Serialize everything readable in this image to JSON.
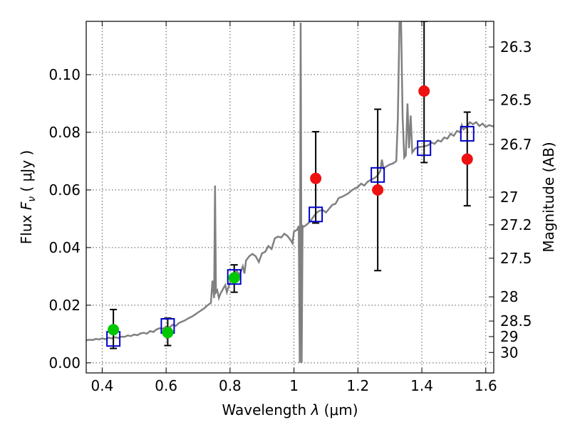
{
  "chart_data": {
    "type": "scatter",
    "xlabel_text": "Wavelength  ",
    "xlabel_symbol": "λ",
    "xlabel_unit": " (μm)",
    "ylabel_text": "Flux  ",
    "ylabel_symbol": "F",
    "ylabel_sub": "ν",
    "ylabel_unit": "  ( μJy )",
    "y2label": "Magnitude (AB)",
    "xlim": [
      0.35,
      1.625
    ],
    "ylim": [
      -0.0035,
      0.1185
    ],
    "grid": true,
    "x_ticks": [
      0.4,
      0.6,
      0.8,
      1.0,
      1.2,
      1.4,
      1.6
    ],
    "x_tick_labels": [
      "0.4",
      "0.6",
      "0.8",
      "1",
      "1.2",
      "1.4",
      "1.6"
    ],
    "y_ticks": [
      0.0,
      0.02,
      0.04,
      0.06,
      0.08,
      0.1
    ],
    "y_tick_labels": [
      "0.00",
      "0.02",
      "0.04",
      "0.06",
      "0.08",
      "0.10"
    ],
    "y2_ticks": [
      {
        "label": "26.3",
        "flux": 0.1096
      },
      {
        "label": "26.5",
        "flux": 0.0912
      },
      {
        "label": "26.7",
        "flux": 0.0758
      },
      {
        "label": "27",
        "flux": 0.0575
      },
      {
        "label": "27.2",
        "flux": 0.0479
      },
      {
        "label": "27.5",
        "flux": 0.0363
      },
      {
        "label": "28",
        "flux": 0.0229
      },
      {
        "label": "28.5",
        "flux": 0.0145
      },
      {
        "label": "29",
        "flux": 0.0091
      },
      {
        "label": "30",
        "flux": 0.0036
      }
    ],
    "colors": {
      "spectrum": "#808080",
      "model_squares": "#0000cc",
      "green_points": "#00c800",
      "red_points": "#ee1111",
      "error_bars": "#000000",
      "grid": "#555555"
    },
    "spectrum": [
      [
        0.35,
        0.0078
      ],
      [
        0.36,
        0.008
      ],
      [
        0.37,
        0.0079
      ],
      [
        0.38,
        0.0083
      ],
      [
        0.39,
        0.0081
      ],
      [
        0.4,
        0.0085
      ],
      [
        0.41,
        0.0082
      ],
      [
        0.42,
        0.0087
      ],
      [
        0.43,
        0.0085
      ],
      [
        0.44,
        0.0089
      ],
      [
        0.45,
        0.0086
      ],
      [
        0.46,
        0.0091
      ],
      [
        0.47,
        0.009
      ],
      [
        0.48,
        0.0095
      ],
      [
        0.49,
        0.0093
      ],
      [
        0.5,
        0.0098
      ],
      [
        0.51,
        0.0096
      ],
      [
        0.52,
        0.0102
      ],
      [
        0.53,
        0.0104
      ],
      [
        0.54,
        0.0101
      ],
      [
        0.55,
        0.011
      ],
      [
        0.56,
        0.0107
      ],
      [
        0.57,
        0.0116
      ],
      [
        0.58,
        0.012
      ],
      [
        0.59,
        0.0118
      ],
      [
        0.6,
        0.0126
      ],
      [
        0.61,
        0.0122
      ],
      [
        0.62,
        0.0132
      ],
      [
        0.63,
        0.0128
      ],
      [
        0.64,
        0.0138
      ],
      [
        0.65,
        0.0143
      ],
      [
        0.66,
        0.0148
      ],
      [
        0.67,
        0.0155
      ],
      [
        0.68,
        0.016
      ],
      [
        0.69,
        0.0167
      ],
      [
        0.7,
        0.0175
      ],
      [
        0.71,
        0.0182
      ],
      [
        0.72,
        0.019
      ],
      [
        0.73,
        0.02
      ],
      [
        0.74,
        0.0208
      ],
      [
        0.745,
        0.0285
      ],
      [
        0.75,
        0.0225
      ],
      [
        0.753,
        0.0615
      ],
      [
        0.756,
        0.0245
      ],
      [
        0.76,
        0.0252
      ],
      [
        0.765,
        0.0225
      ],
      [
        0.77,
        0.024
      ],
      [
        0.78,
        0.026
      ],
      [
        0.785,
        0.027
      ],
      [
        0.79,
        0.0245
      ],
      [
        0.8,
        0.028
      ],
      [
        0.81,
        0.03
      ],
      [
        0.82,
        0.032
      ],
      [
        0.83,
        0.0305
      ],
      [
        0.84,
        0.0335
      ],
      [
        0.845,
        0.031
      ],
      [
        0.85,
        0.0355
      ],
      [
        0.86,
        0.037
      ],
      [
        0.87,
        0.0378
      ],
      [
        0.88,
        0.037
      ],
      [
        0.89,
        0.035
      ],
      [
        0.9,
        0.038
      ],
      [
        0.91,
        0.0385
      ],
      [
        0.92,
        0.0405
      ],
      [
        0.93,
        0.0395
      ],
      [
        0.94,
        0.0432
      ],
      [
        0.95,
        0.0438
      ],
      [
        0.96,
        0.0435
      ],
      [
        0.97,
        0.0448
      ],
      [
        0.98,
        0.044
      ],
      [
        0.99,
        0.0425
      ],
      [
        0.995,
        0.0415
      ],
      [
        1.0,
        0.0455
      ],
      [
        1.01,
        0.0462
      ],
      [
        1.015,
        0.0475
      ],
      [
        1.018,
        0.0
      ],
      [
        1.021,
        0.118
      ],
      [
        1.024,
        0.0
      ],
      [
        1.027,
        0.0475
      ],
      [
        1.03,
        0.0472
      ],
      [
        1.04,
        0.048
      ],
      [
        1.05,
        0.049
      ],
      [
        1.06,
        0.0505
      ],
      [
        1.07,
        0.052
      ],
      [
        1.08,
        0.0528
      ],
      [
        1.09,
        0.053
      ],
      [
        1.1,
        0.0522
      ],
      [
        1.11,
        0.0535
      ],
      [
        1.12,
        0.0548
      ],
      [
        1.13,
        0.0552
      ],
      [
        1.14,
        0.0572
      ],
      [
        1.15,
        0.0576
      ],
      [
        1.16,
        0.0582
      ],
      [
        1.17,
        0.0588
      ],
      [
        1.18,
        0.0598
      ],
      [
        1.19,
        0.0605
      ],
      [
        1.2,
        0.061
      ],
      [
        1.21,
        0.0622
      ],
      [
        1.22,
        0.0615
      ],
      [
        1.23,
        0.0628
      ],
      [
        1.24,
        0.0635
      ],
      [
        1.25,
        0.064
      ],
      [
        1.26,
        0.0648
      ],
      [
        1.27,
        0.0665
      ],
      [
        1.275,
        0.0705
      ],
      [
        1.28,
        0.0675
      ],
      [
        1.29,
        0.0682
      ],
      [
        1.3,
        0.0688
      ],
      [
        1.31,
        0.0692
      ],
      [
        1.32,
        0.07
      ],
      [
        1.325,
        0.085
      ],
      [
        1.33,
        0.118
      ],
      [
        1.335,
        0.118
      ],
      [
        1.34,
        0.085
      ],
      [
        1.345,
        0.0712
      ],
      [
        1.35,
        0.072
      ],
      [
        1.355,
        0.09
      ],
      [
        1.36,
        0.0745
      ],
      [
        1.365,
        0.0858
      ],
      [
        1.37,
        0.073
      ],
      [
        1.38,
        0.0745
      ],
      [
        1.39,
        0.0748
      ],
      [
        1.4,
        0.075
      ],
      [
        1.41,
        0.0752
      ],
      [
        1.42,
        0.0755
      ],
      [
        1.43,
        0.0765
      ],
      [
        1.44,
        0.076
      ],
      [
        1.45,
        0.0772
      ],
      [
        1.46,
        0.0768
      ],
      [
        1.47,
        0.0782
      ],
      [
        1.48,
        0.0778
      ],
      [
        1.49,
        0.0795
      ],
      [
        1.5,
        0.0788
      ],
      [
        1.51,
        0.0805
      ],
      [
        1.52,
        0.08
      ],
      [
        1.525,
        0.0825
      ],
      [
        1.53,
        0.081
      ],
      [
        1.54,
        0.0818
      ],
      [
        1.55,
        0.0835
      ],
      [
        1.56,
        0.0828
      ],
      [
        1.57,
        0.0835
      ],
      [
        1.58,
        0.0822
      ],
      [
        1.59,
        0.083
      ],
      [
        1.6,
        0.0818
      ],
      [
        1.61,
        0.0825
      ],
      [
        1.625,
        0.082
      ]
    ],
    "model_squares": [
      {
        "x": 0.435,
        "y": 0.0083
      },
      {
        "x": 0.605,
        "y": 0.0128
      },
      {
        "x": 0.813,
        "y": 0.0298
      },
      {
        "x": 1.068,
        "y": 0.0515
      },
      {
        "x": 1.262,
        "y": 0.0652
      },
      {
        "x": 1.407,
        "y": 0.0745
      },
      {
        "x": 1.542,
        "y": 0.0795
      }
    ],
    "green_points": [
      {
        "x": 0.435,
        "y": 0.0115,
        "ylo": 0.005,
        "yhi": 0.0185
      },
      {
        "x": 0.605,
        "y": 0.0105,
        "ylo": 0.006,
        "yhi": 0.0155
      },
      {
        "x": 0.813,
        "y": 0.0295,
        "ylo": 0.0245,
        "yhi": 0.034
      }
    ],
    "red_points": [
      {
        "x": 1.068,
        "y": 0.064,
        "ylo": 0.0485,
        "yhi": 0.0802
      },
      {
        "x": 1.262,
        "y": 0.06,
        "ylo": 0.032,
        "yhi": 0.088
      },
      {
        "x": 1.407,
        "y": 0.0943,
        "ylo": 0.0695,
        "yhi": 0.1185
      },
      {
        "x": 1.542,
        "y": 0.0707,
        "ylo": 0.0545,
        "yhi": 0.087
      }
    ]
  }
}
